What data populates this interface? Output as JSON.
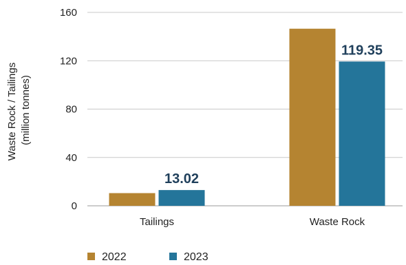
{
  "chart_data": {
    "type": "bar",
    "categories": [
      "Tailings",
      "Waste Rock"
    ],
    "series": [
      {
        "name": "2022",
        "values": [
          10.5,
          146.5
        ],
        "color": "#b58431"
      },
      {
        "name": "2023",
        "values": [
          13.02,
          119.35
        ],
        "color": "#24759a"
      }
    ],
    "data_labels": [
      {
        "series": "2023",
        "category": "Tailings",
        "text": "13.02"
      },
      {
        "series": "2023",
        "category": "Waste Rock",
        "text": "119.35"
      }
    ],
    "ylabel_lines": [
      "Waste Rock / Tailings",
      "(million tonnes)"
    ],
    "yticks": [
      "0",
      "40",
      "80",
      "120",
      "160"
    ],
    "ylim": [
      0,
      160
    ],
    "grid": true,
    "legend_position": "bottom-left"
  }
}
